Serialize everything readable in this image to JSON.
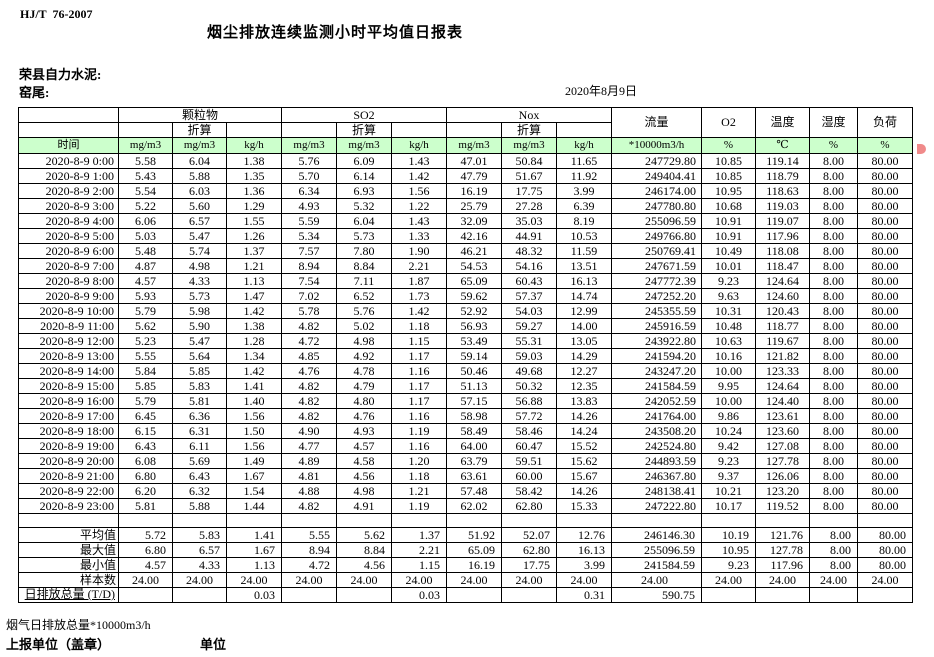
{
  "meta": {
    "standard": "HJ/T  76-2007",
    "title": "烟尘排放连续监测小时平均值日报表",
    "company": "荣县自力水泥:",
    "station": "窑尾:",
    "date": "2020年8月9日"
  },
  "table": {
    "time_label": "时间",
    "col_groups": [
      {
        "label": "颗粒物",
        "sub": "折算"
      },
      {
        "label": "SO2",
        "sub": "折算"
      },
      {
        "label": "Nox",
        "sub": "折算"
      }
    ],
    "scalar_headers": [
      "流量",
      "O2",
      "温度",
      "湿度",
      "负荷"
    ],
    "units": [
      "mg/m3",
      "mg/m3",
      "kg/h",
      "mg/m3",
      "mg/m3",
      "kg/h",
      "mg/m3",
      "mg/m3",
      "kg/h",
      "*10000m3/h",
      "%",
      "℃",
      "%",
      "%"
    ],
    "rows": [
      {
        "time": "2020-8-9 0:00",
        "values": [
          "5.58",
          "6.04",
          "1.38",
          "5.76",
          "6.09",
          "1.43",
          "47.01",
          "50.84",
          "11.65",
          "247729.80",
          "10.85",
          "119.14",
          "8.00",
          "80.00"
        ]
      },
      {
        "time": "2020-8-9 1:00",
        "values": [
          "5.43",
          "5.88",
          "1.35",
          "5.70",
          "6.14",
          "1.42",
          "47.79",
          "51.67",
          "11.92",
          "249404.41",
          "10.85",
          "118.79",
          "8.00",
          "80.00"
        ]
      },
      {
        "time": "2020-8-9 2:00",
        "values": [
          "5.54",
          "6.03",
          "1.36",
          "6.34",
          "6.93",
          "1.56",
          "16.19",
          "17.75",
          "3.99",
          "246174.00",
          "10.95",
          "118.63",
          "8.00",
          "80.00"
        ]
      },
      {
        "time": "2020-8-9 3:00",
        "values": [
          "5.22",
          "5.60",
          "1.29",
          "4.93",
          "5.32",
          "1.22",
          "25.79",
          "27.28",
          "6.39",
          "247780.80",
          "10.68",
          "119.03",
          "8.00",
          "80.00"
        ]
      },
      {
        "time": "2020-8-9 4:00",
        "values": [
          "6.06",
          "6.57",
          "1.55",
          "5.59",
          "6.04",
          "1.43",
          "32.09",
          "35.03",
          "8.19",
          "255096.59",
          "10.91",
          "119.07",
          "8.00",
          "80.00"
        ]
      },
      {
        "time": "2020-8-9 5:00",
        "values": [
          "5.03",
          "5.47",
          "1.26",
          "5.34",
          "5.73",
          "1.33",
          "42.16",
          "44.91",
          "10.53",
          "249766.80",
          "10.91",
          "117.96",
          "8.00",
          "80.00"
        ]
      },
      {
        "time": "2020-8-9 6:00",
        "values": [
          "5.48",
          "5.74",
          "1.37",
          "7.57",
          "7.80",
          "1.90",
          "46.21",
          "48.32",
          "11.59",
          "250769.41",
          "10.49",
          "118.08",
          "8.00",
          "80.00"
        ]
      },
      {
        "time": "2020-8-9 7:00",
        "values": [
          "4.87",
          "4.98",
          "1.21",
          "8.94",
          "8.84",
          "2.21",
          "54.53",
          "54.16",
          "13.51",
          "247671.59",
          "10.01",
          "118.47",
          "8.00",
          "80.00"
        ]
      },
      {
        "time": "2020-8-9 8:00",
        "values": [
          "4.57",
          "4.33",
          "1.13",
          "7.54",
          "7.11",
          "1.87",
          "65.09",
          "60.43",
          "16.13",
          "247772.39",
          "9.23",
          "124.64",
          "8.00",
          "80.00"
        ]
      },
      {
        "time": "2020-8-9 9:00",
        "values": [
          "5.93",
          "5.73",
          "1.47",
          "7.02",
          "6.52",
          "1.73",
          "59.62",
          "57.37",
          "14.74",
          "247252.20",
          "9.63",
          "124.60",
          "8.00",
          "80.00"
        ]
      },
      {
        "time": "2020-8-9 10:00",
        "values": [
          "5.79",
          "5.98",
          "1.42",
          "5.78",
          "5.76",
          "1.42",
          "52.92",
          "54.03",
          "12.99",
          "245355.59",
          "10.31",
          "120.43",
          "8.00",
          "80.00"
        ]
      },
      {
        "time": "2020-8-9 11:00",
        "values": [
          "5.62",
          "5.90",
          "1.38",
          "4.82",
          "5.02",
          "1.18",
          "56.93",
          "59.27",
          "14.00",
          "245916.59",
          "10.48",
          "118.77",
          "8.00",
          "80.00"
        ]
      },
      {
        "time": "2020-8-9 12:00",
        "values": [
          "5.23",
          "5.47",
          "1.28",
          "4.72",
          "4.98",
          "1.15",
          "53.49",
          "55.31",
          "13.05",
          "243922.80",
          "10.63",
          "119.67",
          "8.00",
          "80.00"
        ]
      },
      {
        "time": "2020-8-9 13:00",
        "values": [
          "5.55",
          "5.64",
          "1.34",
          "4.85",
          "4.92",
          "1.17",
          "59.14",
          "59.03",
          "14.29",
          "241594.20",
          "10.16",
          "121.82",
          "8.00",
          "80.00"
        ]
      },
      {
        "time": "2020-8-9 14:00",
        "values": [
          "5.84",
          "5.85",
          "1.42",
          "4.76",
          "4.78",
          "1.16",
          "50.46",
          "49.68",
          "12.27",
          "243247.20",
          "10.00",
          "123.33",
          "8.00",
          "80.00"
        ]
      },
      {
        "time": "2020-8-9 15:00",
        "values": [
          "5.85",
          "5.83",
          "1.41",
          "4.82",
          "4.79",
          "1.17",
          "51.13",
          "50.32",
          "12.35",
          "241584.59",
          "9.95",
          "124.64",
          "8.00",
          "80.00"
        ]
      },
      {
        "time": "2020-8-9 16:00",
        "values": [
          "5.79",
          "5.81",
          "1.40",
          "4.82",
          "4.80",
          "1.17",
          "57.15",
          "56.88",
          "13.83",
          "242052.59",
          "10.00",
          "124.40",
          "8.00",
          "80.00"
        ]
      },
      {
        "time": "2020-8-9 17:00",
        "values": [
          "6.45",
          "6.36",
          "1.56",
          "4.82",
          "4.76",
          "1.16",
          "58.98",
          "57.72",
          "14.26",
          "241764.00",
          "9.86",
          "123.61",
          "8.00",
          "80.00"
        ]
      },
      {
        "time": "2020-8-9 18:00",
        "values": [
          "6.15",
          "6.31",
          "1.50",
          "4.90",
          "4.93",
          "1.19",
          "58.49",
          "58.46",
          "14.24",
          "243508.20",
          "10.24",
          "123.60",
          "8.00",
          "80.00"
        ]
      },
      {
        "time": "2020-8-9 19:00",
        "values": [
          "6.43",
          "6.11",
          "1.56",
          "4.77",
          "4.57",
          "1.16",
          "64.00",
          "60.47",
          "15.52",
          "242524.80",
          "9.42",
          "127.08",
          "8.00",
          "80.00"
        ]
      },
      {
        "time": "2020-8-9 20:00",
        "values": [
          "6.08",
          "5.69",
          "1.49",
          "4.89",
          "4.58",
          "1.20",
          "63.79",
          "59.51",
          "15.62",
          "244893.59",
          "9.23",
          "127.78",
          "8.00",
          "80.00"
        ]
      },
      {
        "time": "2020-8-9 21:00",
        "values": [
          "6.80",
          "6.43",
          "1.67",
          "4.81",
          "4.56",
          "1.18",
          "63.61",
          "60.00",
          "15.67",
          "246367.80",
          "9.37",
          "126.06",
          "8.00",
          "80.00"
        ]
      },
      {
        "time": "2020-8-9 22:00",
        "values": [
          "6.20",
          "6.32",
          "1.54",
          "4.88",
          "4.98",
          "1.21",
          "57.48",
          "58.42",
          "14.26",
          "248138.41",
          "10.21",
          "123.20",
          "8.00",
          "80.00"
        ]
      },
      {
        "time": "2020-8-9 23:00",
        "values": [
          "5.81",
          "5.88",
          "1.44",
          "4.82",
          "4.91",
          "1.19",
          "62.02",
          "62.80",
          "15.33",
          "247222.80",
          "10.17",
          "119.52",
          "8.00",
          "80.00"
        ]
      }
    ],
    "summary": [
      {
        "label": "平均值",
        "align": "right",
        "values": [
          "5.72",
          "5.83",
          "1.41",
          "5.55",
          "5.62",
          "1.37",
          "51.92",
          "52.07",
          "12.76",
          "246146.30",
          "10.19",
          "121.76",
          "8.00",
          "80.00"
        ]
      },
      {
        "label": "最大值",
        "align": "right",
        "values": [
          "6.80",
          "6.57",
          "1.67",
          "8.94",
          "8.84",
          "2.21",
          "65.09",
          "62.80",
          "16.13",
          "255096.59",
          "10.95",
          "127.78",
          "8.00",
          "80.00"
        ]
      },
      {
        "label": "最小值",
        "align": "right",
        "values": [
          "4.57",
          "4.33",
          "1.13",
          "4.72",
          "4.56",
          "1.15",
          "16.19",
          "17.75",
          "3.99",
          "241584.59",
          "9.23",
          "117.96",
          "8.00",
          "80.00"
        ]
      },
      {
        "label": "样本数",
        "align": "center",
        "values": [
          "24.00",
          "24.00",
          "24.00",
          "24.00",
          "24.00",
          "24.00",
          "24.00",
          "24.00",
          "24.00",
          "24.00",
          "24.00",
          "24.00",
          "24.00",
          "24.00"
        ]
      },
      {
        "label": "日排放总量 (T/D)",
        "align": "right",
        "total": true,
        "values": [
          "",
          "",
          "0.03",
          "",
          "",
          "0.03",
          "",
          "",
          "0.31",
          "590.75",
          "",
          "",
          "",
          ""
        ]
      }
    ]
  },
  "footer": {
    "note": "烟气日排放总量*10000m3/h",
    "report_unit": "上报单位（盖章）",
    "unit": "单位"
  },
  "colors": {
    "header_green": "#ccffcc",
    "border": "#000000",
    "red_mark": "#f08a8a"
  }
}
